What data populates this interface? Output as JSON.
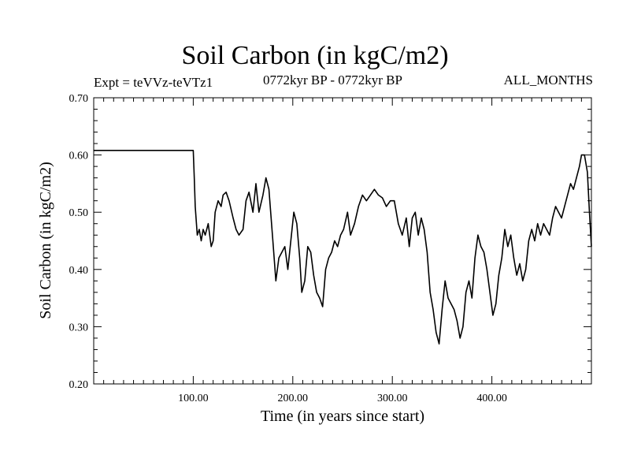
{
  "chart_data": {
    "type": "line",
    "title": "Soil Carbon (in kgC/m2)",
    "subtitle_left": "Expt = teVVz-teVTz1",
    "subtitle_center": "0772kyr BP - 0772kyr BP",
    "subtitle_right": "ALL_MONTHS",
    "xlabel": "Time (in years since start)",
    "ylabel": "Soil Carbon (in kgC/m2)",
    "xlim": [
      0,
      500
    ],
    "ylim": [
      0.2,
      0.7
    ],
    "x_ticks": [
      100,
      200,
      300,
      400
    ],
    "x_tick_labels": [
      "100.00",
      "200.00",
      "300.00",
      "400.00"
    ],
    "y_ticks": [
      0.2,
      0.3,
      0.4,
      0.5,
      0.6,
      0.7
    ],
    "y_tick_labels": [
      "0.20",
      "0.30",
      "0.40",
      "0.50",
      "0.60",
      "0.70"
    ],
    "grid": false,
    "line_color": "#000000",
    "series": [
      {
        "x": [
          0,
          100,
          101,
          102,
          104,
          106,
          108,
          110,
          112,
          115,
          118,
          120,
          122,
          125,
          128,
          130,
          133,
          136,
          140,
          143,
          146,
          150,
          153,
          156,
          160,
          163,
          166,
          170,
          173,
          176,
          180,
          183,
          186,
          189,
          192,
          195,
          198,
          201,
          204,
          207,
          209,
          212,
          215,
          218,
          221,
          224,
          227,
          230,
          233,
          236,
          239,
          242,
          245,
          248,
          251,
          255,
          258,
          262,
          266,
          270,
          274,
          278,
          282,
          286,
          290,
          294,
          298,
          302,
          306,
          310,
          314,
          317,
          320,
          323,
          326,
          329,
          332,
          335,
          338,
          341,
          344,
          347,
          350,
          353,
          356,
          359,
          362,
          365,
          368,
          371,
          374,
          377,
          380,
          383,
          386,
          389,
          392,
          395,
          398,
          401,
          404,
          407,
          410,
          413,
          416,
          419,
          422,
          425,
          428,
          431,
          434,
          437,
          440,
          443,
          446,
          449,
          452,
          455,
          458,
          461,
          464,
          467,
          470,
          473,
          476,
          479,
          482,
          485,
          488,
          490,
          493,
          496,
          498,
          500
        ],
        "y": [
          0.608,
          0.608,
          0.56,
          0.51,
          0.46,
          0.47,
          0.45,
          0.47,
          0.46,
          0.48,
          0.44,
          0.45,
          0.5,
          0.52,
          0.51,
          0.53,
          0.535,
          0.52,
          0.49,
          0.47,
          0.46,
          0.47,
          0.52,
          0.535,
          0.5,
          0.55,
          0.5,
          0.53,
          0.56,
          0.54,
          0.45,
          0.38,
          0.42,
          0.43,
          0.44,
          0.4,
          0.45,
          0.5,
          0.48,
          0.42,
          0.36,
          0.38,
          0.44,
          0.43,
          0.39,
          0.36,
          0.35,
          0.335,
          0.4,
          0.42,
          0.43,
          0.45,
          0.44,
          0.46,
          0.47,
          0.5,
          0.46,
          0.48,
          0.51,
          0.53,
          0.52,
          0.53,
          0.54,
          0.53,
          0.525,
          0.51,
          0.52,
          0.52,
          0.48,
          0.46,
          0.49,
          0.44,
          0.49,
          0.5,
          0.46,
          0.49,
          0.47,
          0.43,
          0.36,
          0.33,
          0.29,
          0.27,
          0.33,
          0.38,
          0.35,
          0.34,
          0.33,
          0.31,
          0.28,
          0.3,
          0.36,
          0.38,
          0.35,
          0.42,
          0.46,
          0.44,
          0.43,
          0.4,
          0.36,
          0.32,
          0.34,
          0.39,
          0.42,
          0.47,
          0.44,
          0.46,
          0.42,
          0.39,
          0.41,
          0.38,
          0.4,
          0.45,
          0.47,
          0.45,
          0.48,
          0.46,
          0.48,
          0.47,
          0.46,
          0.49,
          0.51,
          0.5,
          0.49,
          0.51,
          0.53,
          0.55,
          0.54,
          0.56,
          0.58,
          0.6,
          0.6,
          0.57,
          0.5,
          0.44
        ]
      }
    ]
  }
}
